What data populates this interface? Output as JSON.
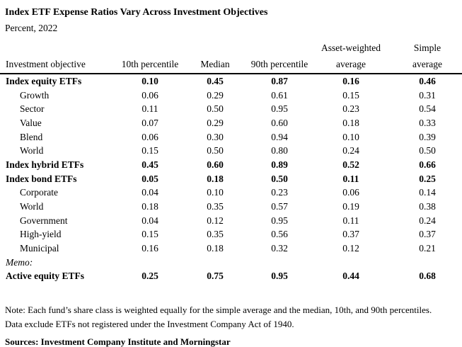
{
  "chart_data": {
    "type": "table",
    "title": "Index ETF Expense Ratios Vary Across Investment Objectives",
    "subtitle": "Percent, 2022",
    "columns": [
      {
        "id": "objective",
        "lines": [
          "Investment objective"
        ]
      },
      {
        "id": "p10",
        "lines": [
          "10th percentile"
        ]
      },
      {
        "id": "median",
        "lines": [
          "Median"
        ]
      },
      {
        "id": "p90",
        "lines": [
          "90th percentile"
        ]
      },
      {
        "id": "asset-weighted",
        "lines": [
          "Asset-weighted",
          "average"
        ]
      },
      {
        "id": "simple",
        "lines": [
          "Simple",
          "average"
        ]
      }
    ],
    "rows": [
      {
        "label": "Index equity ETFs",
        "style": "bold",
        "values": [
          "0.10",
          "0.45",
          "0.87",
          "0.16",
          "0.46"
        ]
      },
      {
        "label": "Growth",
        "style": "indent",
        "values": [
          "0.06",
          "0.29",
          "0.61",
          "0.15",
          "0.31"
        ]
      },
      {
        "label": "Sector",
        "style": "indent",
        "values": [
          "0.11",
          "0.50",
          "0.95",
          "0.23",
          "0.54"
        ]
      },
      {
        "label": "Value",
        "style": "indent",
        "values": [
          "0.07",
          "0.29",
          "0.60",
          "0.18",
          "0.33"
        ]
      },
      {
        "label": "Blend",
        "style": "indent",
        "values": [
          "0.06",
          "0.30",
          "0.94",
          "0.10",
          "0.39"
        ]
      },
      {
        "label": "World",
        "style": "indent",
        "values": [
          "0.15",
          "0.50",
          "0.80",
          "0.24",
          "0.50"
        ]
      },
      {
        "label": "Index hybrid ETFs",
        "style": "bold",
        "values": [
          "0.45",
          "0.60",
          "0.89",
          "0.52",
          "0.66"
        ]
      },
      {
        "label": "Index bond ETFs",
        "style": "bold",
        "values": [
          "0.05",
          "0.18",
          "0.50",
          "0.11",
          "0.25"
        ]
      },
      {
        "label": "Corporate",
        "style": "indent",
        "values": [
          "0.04",
          "0.10",
          "0.23",
          "0.06",
          "0.14"
        ]
      },
      {
        "label": "World",
        "style": "indent",
        "values": [
          "0.18",
          "0.35",
          "0.57",
          "0.19",
          "0.38"
        ]
      },
      {
        "label": "Government",
        "style": "indent",
        "values": [
          "0.04",
          "0.12",
          "0.95",
          "0.11",
          "0.24"
        ]
      },
      {
        "label": "High-yield",
        "style": "indent",
        "values": [
          "0.15",
          "0.35",
          "0.56",
          "0.37",
          "0.37"
        ]
      },
      {
        "label": "Municipal",
        "style": "indent",
        "values": [
          "0.16",
          "0.18",
          "0.32",
          "0.12",
          "0.21"
        ]
      },
      {
        "label": "Memo:",
        "style": "memo",
        "values": [
          "",
          "",
          "",
          "",
          ""
        ]
      },
      {
        "label": "Active equity ETFs",
        "style": "bold",
        "values": [
          "0.25",
          "0.75",
          "0.95",
          "0.44",
          "0.68"
        ]
      }
    ],
    "notes": [
      "Note: Each fund’s share class is weighted equally for the simple average and the median, 10th, and 90th percentiles.",
      "Data exclude ETFs not registered under the Investment Company Act of 1940."
    ],
    "sources": "Sources: Investment Company Institute and Morningstar"
  },
  "colors": {
    "text": "#000000",
    "background": "#ffffff",
    "header_rule": "#000000"
  }
}
